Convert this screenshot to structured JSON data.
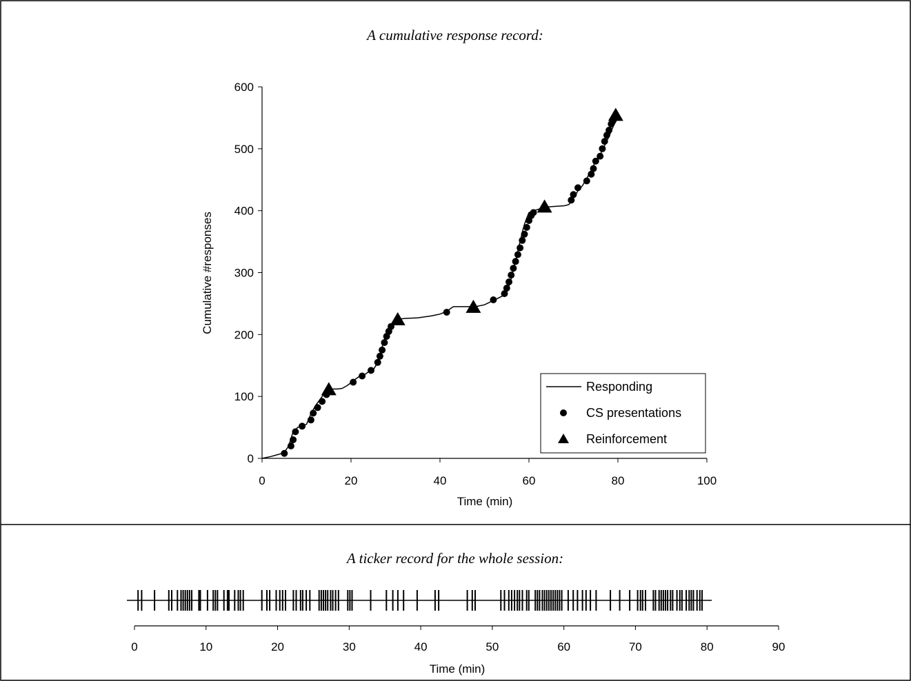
{
  "chart_data": [
    {
      "type": "line",
      "title": "A cumulative response record:",
      "xlabel": "Time (min)",
      "ylabel": "Cumulative #responses",
      "xlim": [
        0,
        100
      ],
      "ylim": [
        0,
        600
      ],
      "xticks": [
        "0",
        "20",
        "40",
        "60",
        "80",
        "100"
      ],
      "yticks": [
        "0",
        "100",
        "200",
        "300",
        "400",
        "500",
        "600"
      ],
      "grid": false,
      "legend_position": "bottom-right",
      "legend": [
        "Responding",
        "CS presentations",
        "Reinforcement"
      ],
      "series": [
        {
          "name": "Responding",
          "marker": "none",
          "x": [
            0,
            2,
            3,
            4.5,
            5,
            6,
            6.5,
            7,
            7.5,
            8,
            9,
            10,
            11,
            12,
            13,
            14,
            15,
            16,
            17,
            18,
            19,
            20,
            21,
            22,
            23,
            24,
            25,
            26,
            26.5,
            27,
            27.5,
            28,
            29,
            30,
            31,
            32,
            35,
            38,
            40,
            41,
            42,
            43,
            45,
            47,
            48,
            50,
            52,
            54,
            55,
            55.5,
            56,
            56.5,
            57,
            57.5,
            58,
            58.5,
            59,
            59.5,
            60,
            61,
            62,
            63,
            64,
            66,
            68,
            69,
            70,
            71,
            72,
            73,
            74,
            75,
            76,
            77,
            78,
            79,
            80
          ],
          "y": [
            0,
            3,
            5,
            8,
            10,
            20,
            32,
            43,
            46,
            50,
            52,
            55,
            72,
            85,
            95,
            105,
            108,
            112,
            112,
            113,
            117,
            122,
            128,
            133,
            135,
            140,
            143,
            155,
            167,
            180,
            192,
            200,
            210,
            222,
            225,
            226,
            227,
            230,
            233,
            236,
            240,
            245,
            245,
            245,
            245,
            248,
            255,
            262,
            268,
            278,
            290,
            305,
            318,
            335,
            350,
            365,
            378,
            388,
            397,
            400,
            402,
            405,
            406,
            407,
            408,
            410,
            420,
            432,
            440,
            452,
            465,
            480,
            490,
            505,
            520,
            537,
            550
          ]
        },
        {
          "name": "CS presentations",
          "marker": "circle",
          "x": [
            5,
            6.5,
            7,
            7.5,
            9,
            11,
            11.5,
            12.5,
            13.5,
            14.5,
            20.5,
            22.5,
            24.5,
            26,
            26.5,
            27,
            27.5,
            28,
            28.5,
            29,
            41.5,
            52,
            54.5,
            55,
            55.5,
            56,
            56.5,
            57,
            57.5,
            58,
            58.5,
            59,
            59.5,
            60,
            60.5,
            61,
            69.5,
            70,
            71,
            73,
            74,
            74.5,
            75,
            76,
            76.5,
            77,
            77.5,
            78,
            78.5,
            79
          ],
          "y": [
            8,
            20,
            30,
            43,
            52,
            62,
            73,
            82,
            92,
            103,
            123,
            133,
            142,
            155,
            165,
            175,
            187,
            197,
            205,
            213,
            236,
            256,
            266,
            275,
            285,
            296,
            307,
            318,
            329,
            340,
            352,
            362,
            373,
            384,
            392,
            397,
            417,
            426,
            437,
            448,
            459,
            468,
            480,
            488,
            500,
            512,
            522,
            530,
            540,
            547
          ]
        },
        {
          "name": "Reinforcement",
          "marker": "triangle",
          "x": [
            15,
            30.5,
            47.5,
            63.5,
            79.5
          ],
          "y": [
            112,
            225,
            245,
            407,
            555
          ]
        }
      ]
    },
    {
      "type": "scatter",
      "title": "A ticker record for the whole session:",
      "xlabel": "Time (min)",
      "ylabel": "",
      "xlim": [
        0,
        90
      ],
      "xticks": [
        "0",
        "10",
        "20",
        "30",
        "40",
        "50",
        "60",
        "70",
        "80",
        "90"
      ],
      "grid": false,
      "series": [
        {
          "name": "",
          "marker": "tick",
          "x": [
            0.5,
            1,
            2.8,
            4.8,
            5.2,
            6,
            6.5,
            6.8,
            7.1,
            7.4,
            7.7,
            8,
            9,
            9.2,
            10.2,
            11,
            11.3,
            11.6,
            12.5,
            13,
            13.2,
            14,
            14.5,
            14.8,
            15.2,
            17.8,
            18.5,
            18.9,
            19.8,
            20.3,
            20.7,
            21.1,
            22.2,
            22.6,
            23.2,
            23.5,
            24,
            24.5,
            25.8,
            26.1,
            26.4,
            26.7,
            27,
            27.4,
            27.7,
            28.1,
            28.5,
            29.8,
            30.1,
            30.4,
            33,
            35.2,
            36.1,
            36.8,
            37.6,
            39.5,
            42,
            42.5,
            46.5,
            47.2,
            47.6,
            51.2,
            51.7,
            52.3,
            52.7,
            53.1,
            53.5,
            53.8,
            54.2,
            54.8,
            55.1,
            56,
            56.3,
            56.6,
            57,
            57.3,
            57.6,
            57.9,
            58.2,
            58.5,
            58.8,
            59.1,
            59.4,
            59.7,
            60.6,
            61.3,
            61.9,
            62.6,
            63.1,
            63.7,
            64.5,
            66.5,
            67.8,
            69.2,
            70.3,
            70.7,
            71,
            71.4,
            72.5,
            72.8,
            73.3,
            73.6,
            73.9,
            74.2,
            74.5,
            74.9,
            75.2,
            75.8,
            76.2,
            76.5,
            77.1,
            77.5,
            77.8,
            78.1,
            78.6,
            79,
            79.3
          ]
        }
      ]
    }
  ]
}
